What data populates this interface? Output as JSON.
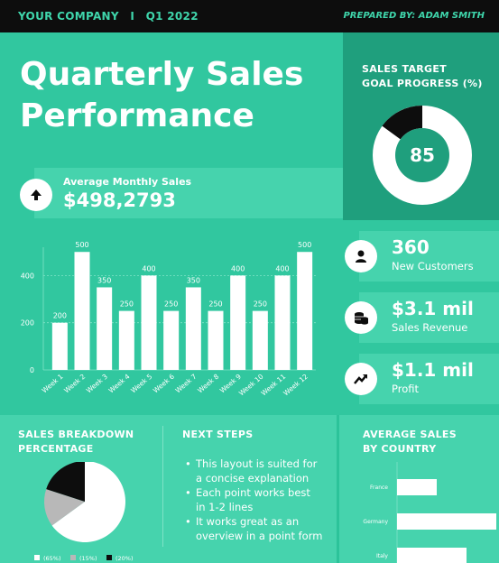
{
  "header": {
    "company": "YOUR COMPANY",
    "separator": "I",
    "quarter": "Q1 2022",
    "prepared_by": "PREPARED BY: ADAM SMITH"
  },
  "title_line1": "Quarterly Sales",
  "title_line2": "Performance",
  "avg_monthly": {
    "label": "Average Monthly Sales",
    "value": "$498,2793",
    "icon": "arrow-up-icon"
  },
  "goal": {
    "title_line1": "SALES TARGET",
    "title_line2": "GOAL PROGRESS (%)",
    "value": "85",
    "progress_percent": 85
  },
  "kpis": [
    {
      "value": "360",
      "label": "New Customers",
      "icon": "user-icon"
    },
    {
      "value": "$3.1 mil",
      "label": "Sales Revenue",
      "icon": "coins-icon"
    },
    {
      "value": "$1.1 mil",
      "label": "Profit",
      "icon": "trend-up-icon"
    }
  ],
  "breakdown": {
    "title_line1": "SALES BREAKDOWN",
    "title_line2": "PERCENTAGE"
  },
  "next_steps": {
    "title": "NEXT STEPS",
    "items": [
      [
        "This layout is suited for",
        "a concise explanation"
      ],
      [
        "Each point works best",
        "in 1-2 lines"
      ],
      [
        "It works great as an",
        "overview in a point form"
      ]
    ]
  },
  "by_country": {
    "title_line1": "AVERAGE SALES",
    "title_line2": "BY COUNTRY"
  },
  "colors": {
    "background": "#2cc39a",
    "dark_panel": "#1f9f7d",
    "light_panel": "#46d3ad",
    "black": "#0d0d0d",
    "white": "#ffffff",
    "grey": "#b8b8b8"
  },
  "chart_data": [
    {
      "type": "bar",
      "categories": [
        "Week 1",
        "Week 2",
        "Week 3",
        "Week 4",
        "Week 5",
        "Week 6",
        "Week 7",
        "Week 8",
        "Week 9",
        "Week 10",
        "Week 11",
        "Week 12"
      ],
      "values": [
        200,
        500,
        350,
        250,
        400,
        250,
        350,
        250,
        400,
        250,
        400,
        500
      ],
      "data_labels": [
        "200",
        "500",
        "350",
        "250",
        "400",
        "250",
        "350",
        "250",
        "400",
        "250",
        "400",
        "500"
      ],
      "yticks": [
        "0",
        "200",
        "400"
      ],
      "ylim": [
        0,
        520
      ],
      "grid": true
    },
    {
      "type": "pie",
      "slices": [
        {
          "label": "(65%)",
          "value": 65,
          "color": "#ffffff"
        },
        {
          "label": "(15%)",
          "value": 15,
          "color": "#b8b8b8"
        },
        {
          "label": "(20%)",
          "value": 20,
          "color": "#0d0d0d"
        }
      ],
      "legend": "bottom"
    },
    {
      "type": "bar",
      "orientation": "horizontal",
      "categories": [
        "France",
        "Germany",
        "Italy"
      ],
      "values": [
        40,
        100,
        70
      ],
      "xlim": [
        0,
        100
      ]
    }
  ]
}
